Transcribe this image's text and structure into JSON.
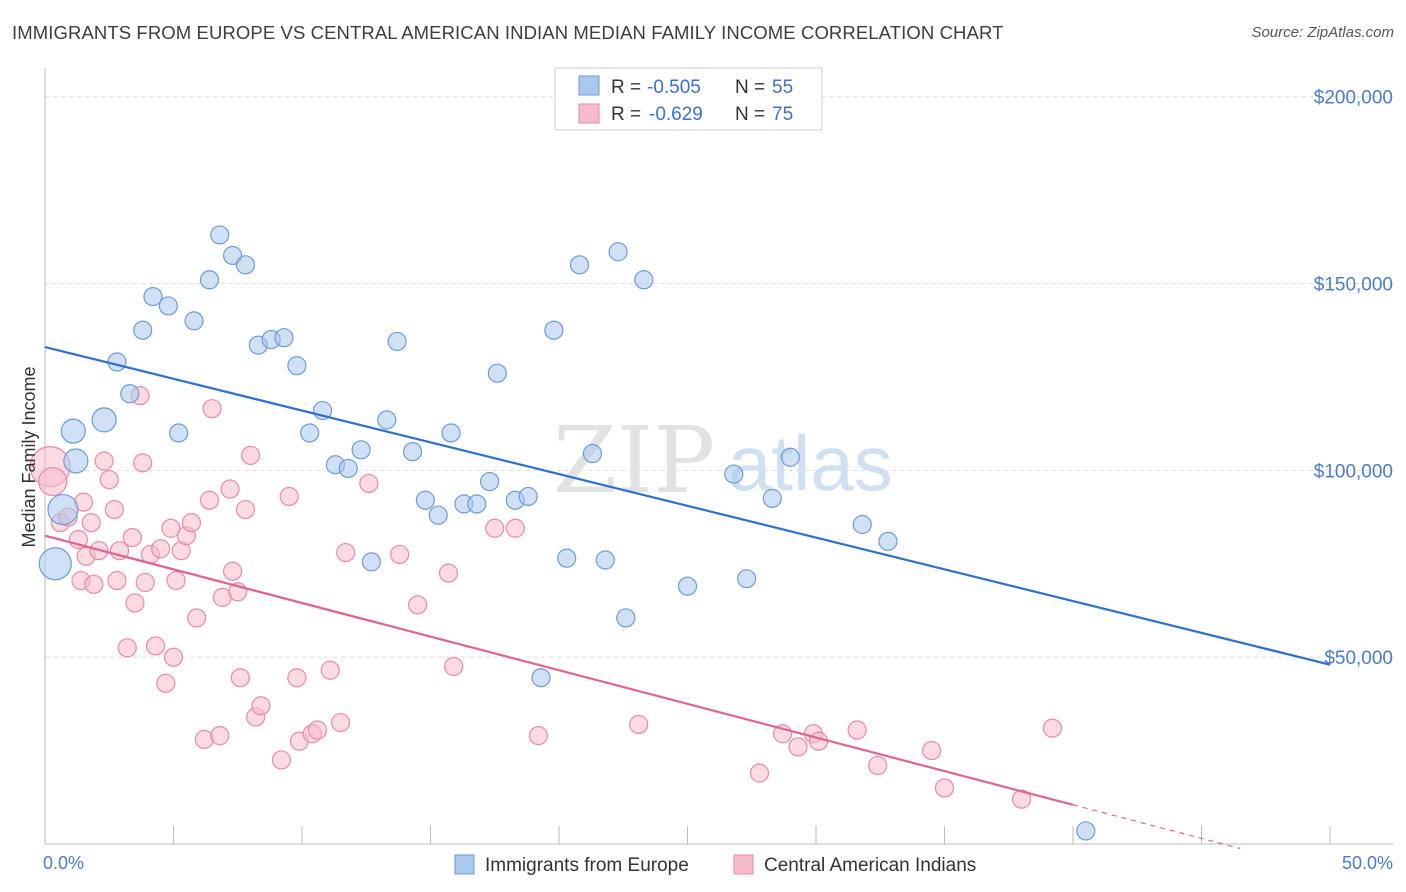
{
  "title": "IMMIGRANTS FROM EUROPE VS CENTRAL AMERICAN INDIAN MEDIAN FAMILY INCOME CORRELATION CHART",
  "source": "Source: ZipAtlas.com",
  "watermark": {
    "zip": "ZIP",
    "atlas": "atlas"
  },
  "colors": {
    "blue_fill": "#aac8ee",
    "blue_stroke": "#6d9bd8",
    "blue_line": "#2f6fcf",
    "pink_fill": "#f7bccb",
    "pink_stroke": "#e98aa6",
    "pink_line": "#e0648d",
    "axis_text": "#4a7ccc",
    "grid": "#dddddd"
  },
  "stats_box": {
    "rows": [
      {
        "r_label": "R =",
        "r_value": "-0.505",
        "n_label": "N =",
        "n_value": "55",
        "series": "blue"
      },
      {
        "r_label": "R =",
        "r_value": "-0.629",
        "n_label": "N =",
        "n_value": "75",
        "series": "pink"
      }
    ]
  },
  "legend": {
    "items": [
      {
        "label": "Immigrants from Europe",
        "series": "blue"
      },
      {
        "label": "Central American Indians",
        "series": "pink"
      }
    ]
  },
  "chart_data": {
    "type": "scatter",
    "title": "IMMIGRANTS FROM EUROPE VS CENTRAL AMERICAN INDIAN MEDIAN FAMILY INCOME CORRELATION CHART",
    "xlabel": "",
    "ylabel": "Median Family Income",
    "xlim": [
      0,
      50
    ],
    "ylim": [
      0,
      205000
    ],
    "x_tick_labels": [
      "0.0%",
      "50.0%"
    ],
    "y_tick_labels": [
      "$50,000",
      "$100,000",
      "$150,000",
      "$200,000"
    ],
    "y_ticks": [
      50000,
      100000,
      150000,
      200000
    ],
    "grid": true,
    "legend_position": "bottom",
    "series": [
      {
        "name": "Immigrants from Europe",
        "color": "#aac8ee",
        "trend": {
          "x": [
            0,
            50
          ],
          "y": [
            133000,
            48000
          ]
        },
        "points": [
          [
            0.4,
            75000
          ],
          [
            0.7,
            89500
          ],
          [
            1.2,
            102500
          ],
          [
            1.1,
            110500
          ],
          [
            2.3,
            113500
          ],
          [
            2.8,
            129000
          ],
          [
            3.3,
            120500
          ],
          [
            3.8,
            137500
          ],
          [
            4.2,
            146500
          ],
          [
            4.8,
            144000
          ],
          [
            5.2,
            110000
          ],
          [
            5.8,
            140000
          ],
          [
            6.4,
            151000
          ],
          [
            6.8,
            163000
          ],
          [
            7.3,
            157500
          ],
          [
            7.8,
            155000
          ],
          [
            8.3,
            133500
          ],
          [
            8.8,
            135000
          ],
          [
            9.3,
            135500
          ],
          [
            9.8,
            128000
          ],
          [
            10.3,
            110000
          ],
          [
            10.8,
            116000
          ],
          [
            11.3,
            101500
          ],
          [
            11.8,
            100500
          ],
          [
            12.3,
            105500
          ],
          [
            12.7,
            75500
          ],
          [
            13.3,
            113500
          ],
          [
            13.7,
            134500
          ],
          [
            14.3,
            105000
          ],
          [
            14.8,
            92000
          ],
          [
            15.3,
            88000
          ],
          [
            15.8,
            110000
          ],
          [
            16.3,
            91000
          ],
          [
            16.8,
            91000
          ],
          [
            17.3,
            97000
          ],
          [
            17.6,
            126000
          ],
          [
            18.3,
            92000
          ],
          [
            18.8,
            93000
          ],
          [
            19.3,
            44500
          ],
          [
            19.8,
            137500
          ],
          [
            20.3,
            76500
          ],
          [
            20.8,
            155000
          ],
          [
            21.3,
            104500
          ],
          [
            21.8,
            76000
          ],
          [
            22.3,
            158500
          ],
          [
            22.6,
            60500
          ],
          [
            23.3,
            151000
          ],
          [
            25.0,
            69000
          ],
          [
            26.8,
            99000
          ],
          [
            27.3,
            71000
          ],
          [
            28.3,
            92500
          ],
          [
            29.0,
            103500
          ],
          [
            31.8,
            85500
          ],
          [
            32.8,
            81000
          ],
          [
            40.5,
            3500
          ]
        ]
      },
      {
        "name": "Central American Indians",
        "color": "#f7bccb",
        "trend": {
          "x": [
            0,
            40
          ],
          "y": [
            82500,
            10500
          ]
        },
        "trend_dashed": {
          "x": [
            40,
            46.5
          ],
          "y": [
            10500,
            -1200
          ]
        },
        "points": [
          [
            0.2,
            101000
          ],
          [
            0.3,
            97000
          ],
          [
            0.6,
            86000
          ],
          [
            0.9,
            87500
          ],
          [
            1.3,
            81500
          ],
          [
            1.4,
            70500
          ],
          [
            1.5,
            91500
          ],
          [
            1.6,
            77000
          ],
          [
            1.8,
            86000
          ],
          [
            1.9,
            69500
          ],
          [
            2.1,
            78500
          ],
          [
            2.3,
            102500
          ],
          [
            2.5,
            97500
          ],
          [
            2.7,
            89500
          ],
          [
            2.8,
            70500
          ],
          [
            2.9,
            78500
          ],
          [
            3.2,
            52500
          ],
          [
            3.4,
            82000
          ],
          [
            3.5,
            64500
          ],
          [
            3.7,
            120000
          ],
          [
            3.8,
            102000
          ],
          [
            3.9,
            70000
          ],
          [
            4.1,
            77500
          ],
          [
            4.3,
            53000
          ],
          [
            4.5,
            79000
          ],
          [
            4.7,
            43000
          ],
          [
            4.9,
            84500
          ],
          [
            5.0,
            50000
          ],
          [
            5.1,
            70500
          ],
          [
            5.3,
            78500
          ],
          [
            5.5,
            82500
          ],
          [
            5.7,
            86000
          ],
          [
            5.9,
            60500
          ],
          [
            6.2,
            28000
          ],
          [
            6.4,
            92000
          ],
          [
            6.5,
            116500
          ],
          [
            6.8,
            29000
          ],
          [
            6.9,
            66000
          ],
          [
            7.2,
            95000
          ],
          [
            7.3,
            73000
          ],
          [
            7.5,
            67500
          ],
          [
            7.6,
            44500
          ],
          [
            7.8,
            89500
          ],
          [
            8.0,
            104000
          ],
          [
            8.2,
            34000
          ],
          [
            8.4,
            37000
          ],
          [
            9.2,
            22500
          ],
          [
            9.5,
            93000
          ],
          [
            9.8,
            44500
          ],
          [
            9.9,
            27500
          ],
          [
            10.4,
            29500
          ],
          [
            10.6,
            30500
          ],
          [
            11.1,
            46500
          ],
          [
            11.5,
            32500
          ],
          [
            11.7,
            78000
          ],
          [
            12.6,
            96500
          ],
          [
            13.8,
            77500
          ],
          [
            14.5,
            64000
          ],
          [
            15.7,
            72500
          ],
          [
            15.9,
            47500
          ],
          [
            17.5,
            84500
          ],
          [
            18.3,
            84500
          ],
          [
            19.2,
            29000
          ],
          [
            23.1,
            32000
          ],
          [
            27.8,
            19000
          ],
          [
            28.7,
            29500
          ],
          [
            29.3,
            26000
          ],
          [
            29.9,
            29500
          ],
          [
            30.1,
            27500
          ],
          [
            31.6,
            30500
          ],
          [
            32.4,
            21000
          ],
          [
            34.5,
            25000
          ],
          [
            39.2,
            31000
          ],
          [
            35.0,
            15000
          ],
          [
            38.0,
            12000
          ]
        ]
      }
    ]
  }
}
